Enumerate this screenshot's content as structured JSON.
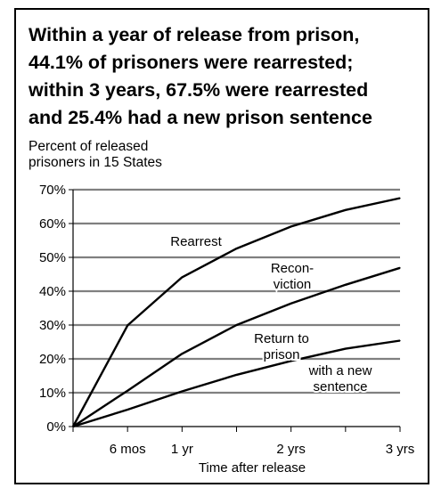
{
  "chart_data": {
    "type": "line",
    "title_lines": [
      "Within a year of release from prison,",
      "44.1% of prisoners were rearrested;",
      "within 3 years, 67.5% were rearrested",
      "and 25.4% had a new prison sentence"
    ],
    "ylabel_lines": [
      "Percent of released",
      "prisoners in 15 States"
    ],
    "xlabel": "Time after release",
    "x": [
      0,
      0.5,
      1,
      1.5,
      2,
      2.5,
      3
    ],
    "xticks": [
      {
        "value": 0.5,
        "label": "6 mos"
      },
      {
        "value": 1,
        "label": "1 yr"
      },
      {
        "value": 2,
        "label": "2 yrs"
      },
      {
        "value": 3,
        "label": "3 yrs"
      }
    ],
    "xlim": [
      0,
      3
    ],
    "ylim": [
      0,
      70
    ],
    "yticks": [
      0,
      10,
      20,
      30,
      40,
      50,
      60,
      70
    ],
    "ytick_labels": [
      "0%",
      "10%",
      "20%",
      "30%",
      "40%",
      "50%",
      "60%",
      "70%"
    ],
    "grid": "horizontal",
    "series": [
      {
        "name": "Rearrest",
        "values": [
          0,
          29.9,
          44.1,
          52.6,
          59.1,
          64.0,
          67.5
        ]
      },
      {
        "name": "Reconviction",
        "values": [
          0,
          10.6,
          21.5,
          30.0,
          36.4,
          41.9,
          46.9
        ]
      },
      {
        "name": "Return to prison with a new sentence",
        "values": [
          0,
          5.0,
          10.4,
          15.3,
          19.4,
          23.0,
          25.4
        ]
      }
    ],
    "annotations": [
      {
        "series": 0,
        "lines": [
          "Rearrest"
        ]
      },
      {
        "series": 1,
        "lines": [
          "Recon-",
          "viction"
        ]
      },
      {
        "series": 2,
        "lines": [
          "Return to",
          "prison"
        ]
      },
      {
        "series": 2,
        "lines": [
          "with a new",
          "sentence"
        ]
      }
    ],
    "line_color": "#000000",
    "grid_color": "#808080"
  }
}
